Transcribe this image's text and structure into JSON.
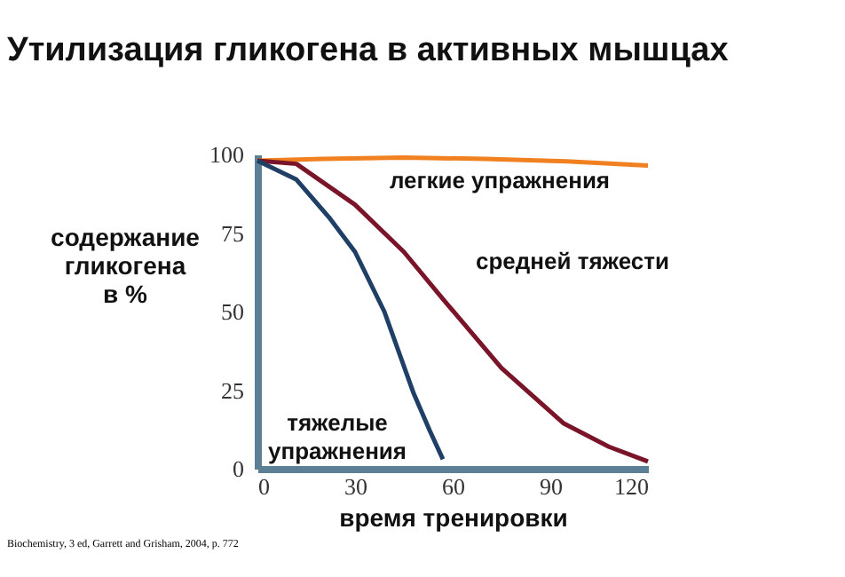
{
  "chart_data": {
    "type": "line",
    "title": "Утилизация гликогена в активных мышцах",
    "xlabel": "время тренировки",
    "ylabel": "содержание\nгликогена\nв %",
    "xlim": [
      0,
      120
    ],
    "xticks": [
      0,
      30,
      60,
      90,
      120
    ],
    "ylim": [
      0,
      100
    ],
    "yticks": [
      0,
      25,
      50,
      75,
      100
    ],
    "grid": false,
    "legend": false,
    "marker": "none",
    "line_style": "solid",
    "series": [
      {
        "name": "легкие упражнения",
        "color": "#f08020",
        "x": [
          0,
          20,
          45,
          70,
          95,
          120
        ],
        "values": [
          98,
          98.6,
          99,
          98.6,
          97.8,
          96.5
        ]
      },
      {
        "name": "средней тяжести",
        "color": "#7a1428",
        "x": [
          0,
          12,
          30,
          45,
          57,
          75,
          94,
          108,
          120
        ],
        "values": [
          98,
          97,
          84,
          69,
          54,
          32,
          14.5,
          7,
          2.3
        ]
      },
      {
        "name": "тяжелые\nупражнения",
        "color": "#1f3f66",
        "x": [
          0,
          12,
          22,
          30,
          39,
          48,
          53,
          57
        ],
        "values": [
          98,
          92,
          80,
          69,
          50,
          24,
          12,
          3
        ]
      }
    ],
    "annotations": [
      "Biochemistry, 3 ed, Garrett and Grisham, 2004, p. 772"
    ]
  }
}
